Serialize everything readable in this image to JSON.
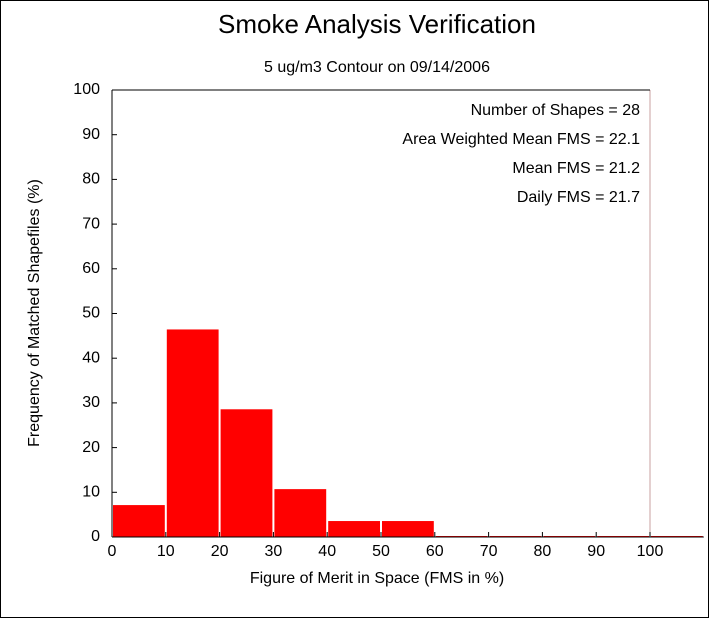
{
  "chart_data": {
    "type": "histogram",
    "title": "Smoke Analysis Verification",
    "subtitle": "5 ug/m3 Contour on 09/14/2006",
    "x_label": "Figure of Merit in Space (FMS in %)",
    "y_label": "Frequency of Matched Shapefiles (%)",
    "annotations": [
      "Number of Shapes = 28",
      "Area Weighted Mean FMS = 22.1",
      "Mean FMS = 21.2",
      "Daily FMS = 21.7"
    ],
    "bins": [
      0,
      10,
      20,
      30,
      40,
      50,
      60,
      70,
      80,
      90,
      100,
      110
    ],
    "values": [
      7.14,
      46.43,
      28.57,
      10.71,
      3.57,
      3.57,
      0,
      0,
      0,
      0,
      0
    ],
    "color": "#ff0000",
    "xlim": [
      0,
      100
    ],
    "ylim": [
      0,
      100
    ],
    "xticks": [
      0,
      10,
      20,
      30,
      40,
      50,
      60,
      70,
      80,
      90,
      100
    ],
    "yticks": [
      0,
      10,
      20,
      30,
      40,
      50,
      60,
      70,
      80,
      90,
      100
    ]
  }
}
